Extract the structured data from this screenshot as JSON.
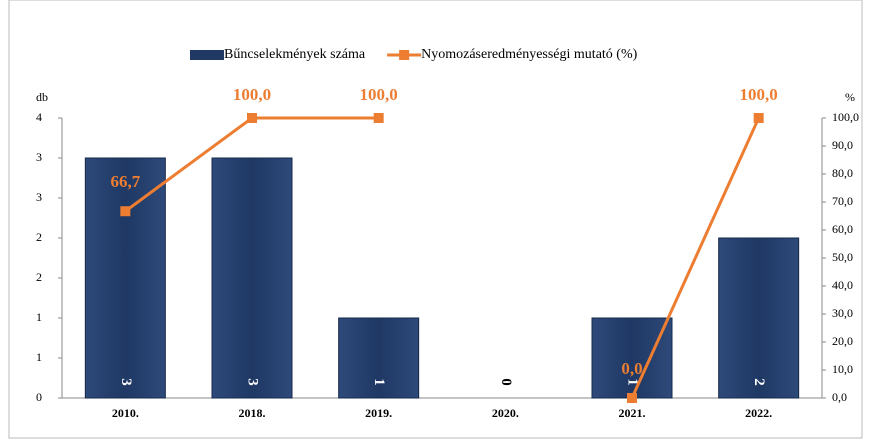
{
  "chart_data": {
    "type": "bar_line",
    "categories": [
      "2010.",
      "2018.",
      "2019.",
      "2020.",
      "2021.",
      "2022."
    ],
    "ylabel": "db",
    "y2label": "%",
    "series": [
      {
        "name": "Bűncselekmények száma",
        "type": "bar",
        "color": "#1f3864",
        "values": [
          3,
          3,
          1,
          0,
          1,
          2
        ]
      },
      {
        "name": "Nyomozáseredményességi mutató (%)",
        "type": "line",
        "axis": "y2",
        "color": "#ed7d31",
        "values": [
          66.7,
          100,
          100,
          null,
          0,
          100
        ],
        "value_labels": [
          "66,7",
          "100,0",
          "100,0",
          null,
          "0,0",
          "100,0"
        ]
      }
    ],
    "ylim": [
      0,
      3.5
    ],
    "yticks": [
      0,
      {
        "value": 0.5,
        "label": "1"
      },
      1,
      {
        "value": 1.5,
        "label": "2"
      },
      2,
      {
        "value": 2.5,
        "label": "3"
      },
      3,
      {
        "value": 3.5,
        "label": "4"
      }
    ],
    "y2lim": [
      0,
      100
    ],
    "y2ticks": [
      {
        "value": 0,
        "label": "0,0"
      },
      {
        "value": 10,
        "label": "10,0"
      },
      {
        "value": 20,
        "label": "20,0"
      },
      {
        "value": 30,
        "label": "30,0"
      },
      {
        "value": 40,
        "label": "40,0"
      },
      {
        "value": 50,
        "label": "50,0"
      },
      {
        "value": 60,
        "label": "60,0"
      },
      {
        "value": 70,
        "label": "70,0"
      },
      {
        "value": 80,
        "label": "80,0"
      },
      {
        "value": 90,
        "label": "90,0"
      },
      {
        "value": 100,
        "label": "100,0"
      }
    ],
    "legend": "top"
  }
}
